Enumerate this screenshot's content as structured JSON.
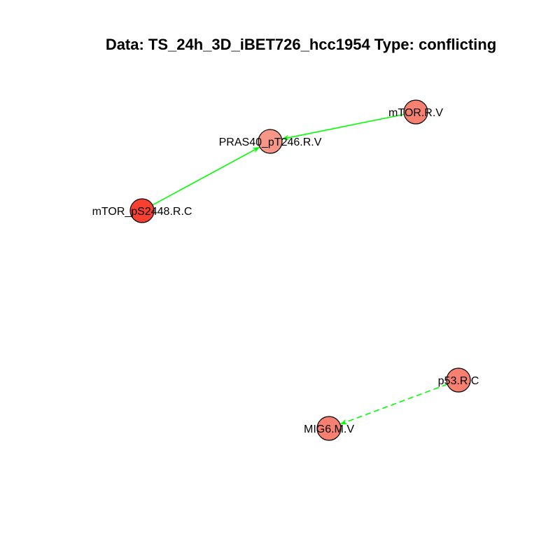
{
  "title": "Data: TS_24h_3D_iBET726_hcc1954 Type: conflicting",
  "nodes": [
    {
      "id": "mTOR_R_V",
      "label": "mTOR.R.V",
      "fill": "#F88070"
    },
    {
      "id": "PRAS40_pT246_R_V",
      "label": "PRAS40_pT246.R.V",
      "fill": "#F89788"
    },
    {
      "id": "mTOR_pS2448_R_C",
      "label": "mTOR_pS2448.R.C",
      "fill": "#F84030"
    },
    {
      "id": "p53_R_C",
      "label": "p53.R.C",
      "fill": "#F88070"
    },
    {
      "id": "MIG6_M_V",
      "label": "MIG6.M.V",
      "fill": "#F88070"
    }
  ],
  "edges": [
    {
      "from": "mTOR_R_V",
      "to": "PRAS40_pT246_R_V",
      "style": "solid",
      "color": "#00FF00"
    },
    {
      "from": "mTOR_pS2448_R_C",
      "to": "PRAS40_pT246_R_V",
      "style": "solid",
      "color": "#00FF00"
    },
    {
      "from": "p53_R_C",
      "to": "MIG6_M_V",
      "style": "dashed",
      "color": "#00FF00"
    }
  ]
}
